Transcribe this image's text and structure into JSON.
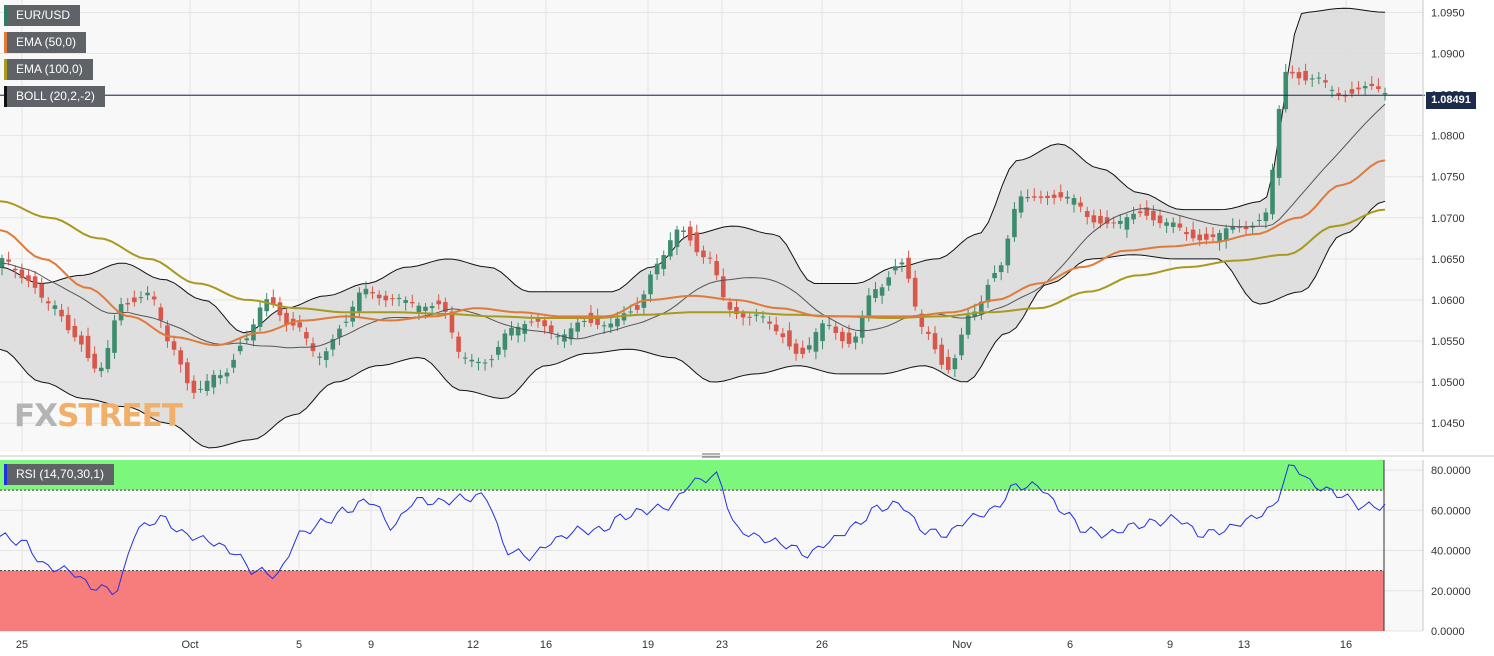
{
  "legend": {
    "symbol": "EUR/USD",
    "ema50": "EMA (50,0)",
    "ema100": "EMA (100,0)",
    "boll": "BOLL (20,2,-2)",
    "rsi": "RSI (14,70,30,1)"
  },
  "watermark": {
    "fx": "FX",
    "street": "STREET"
  },
  "colors": {
    "ema50": "#e07a3a",
    "ema100": "#a89a1e",
    "boll_mid": "#555555",
    "bull": "#3d8c6e",
    "bear": "#d9574a",
    "rsi_line": "#2030e0",
    "rsi_over": "#7cf77c",
    "rsi_under": "#f77c7c",
    "current_line": "#1a2b4c"
  },
  "chart_data": {
    "type": "candlestick",
    "symbol": "EUR/USD",
    "current_price": "1.08491",
    "price_axis": {
      "ylim": [
        1.0415,
        1.0965
      ],
      "ticks": [
        "1.0950",
        "1.0900",
        "1.0850",
        "1.0800",
        "1.0750",
        "1.0700",
        "1.0650",
        "1.0600",
        "1.0550",
        "1.0500",
        "1.0450"
      ]
    },
    "rsi_axis": {
      "ylim": [
        0,
        85
      ],
      "ticks": [
        "80.0000",
        "60.0000",
        "40.0000",
        "20.0000",
        "0.0000"
      ],
      "overbought": 70,
      "oversold": 30
    },
    "x_labels": [
      "25",
      "Oct",
      "5",
      "9",
      "12",
      "16",
      "19",
      "23",
      "26",
      "Nov",
      "6",
      "9",
      "13",
      "16"
    ],
    "close_anchors": [
      1.0645,
      1.063,
      1.059,
      1.056,
      1.051,
      1.06,
      1.0605,
      1.0545,
      1.0485,
      1.051,
      1.055,
      1.06,
      1.057,
      1.053,
      1.057,
      1.061,
      1.0605,
      1.059,
      1.06,
      1.0525,
      1.053,
      1.056,
      1.058,
      1.055,
      1.058,
      1.0565,
      1.059,
      1.064,
      1.069,
      1.065,
      1.059,
      1.058,
      1.056,
      1.0535,
      1.057,
      1.055,
      1.061,
      1.065,
      1.056,
      1.052,
      1.058,
      1.064,
      1.072,
      1.073,
      1.072,
      1.07,
      1.069,
      1.071,
      1.069,
      1.068,
      1.0675,
      1.069,
      1.07,
      1.088,
      1.087,
      1.085,
      1.086,
      1.0849
    ],
    "ema50_anchors": [
      1.0685,
      1.065,
      1.0615,
      1.058,
      1.0555,
      1.0545,
      1.056,
      1.0575,
      1.058,
      1.0575,
      1.058,
      1.059,
      1.0585,
      1.058,
      1.058,
      1.06,
      1.0605,
      1.06,
      1.059,
      1.058,
      1.058,
      1.058,
      1.0585,
      1.06,
      1.062,
      1.064,
      1.066,
      1.0665,
      1.067,
      1.068,
      1.07,
      1.074,
      1.077
    ],
    "ema100_anchors": [
      1.072,
      1.07,
      1.0675,
      1.065,
      1.062,
      1.06,
      1.059,
      1.0585,
      1.0585,
      1.0583,
      1.058,
      1.0578,
      1.0578,
      1.0582,
      1.0585,
      1.0585,
      1.0582,
      1.058,
      1.0578,
      1.058,
      1.0585,
      1.059,
      1.061,
      1.063,
      1.064,
      1.0648,
      1.0655,
      1.069,
      1.071
    ],
    "boll_upper_anchors": [
      1.064,
      1.062,
      1.063,
      1.0645,
      1.0625,
      1.06,
      1.056,
      1.059,
      1.0605,
      1.062,
      1.064,
      1.065,
      1.064,
      1.061,
      1.061,
      1.061,
      1.064,
      1.068,
      1.069,
      1.068,
      1.062,
      1.062,
      1.064,
      1.065,
      1.068,
      1.077,
      1.079,
      1.076,
      1.073,
      1.071,
      1.071,
      1.072,
      1.095,
      1.0955,
      1.095
    ],
    "boll_lower_anchors": [
      1.054,
      1.05,
      1.048,
      1.047,
      1.045,
      1.042,
      1.043,
      1.046,
      1.05,
      1.052,
      1.053,
      1.049,
      1.048,
      1.052,
      1.0535,
      1.054,
      1.053,
      1.05,
      1.051,
      1.052,
      1.051,
      1.051,
      1.052,
      1.05,
      1.056,
      1.062,
      1.065,
      1.0655,
      1.065,
      1.065,
      1.0595,
      1.061,
      1.068,
      1.072
    ],
    "rsi_anchors": [
      47,
      44,
      32,
      30,
      22,
      20,
      51,
      56,
      48,
      45,
      40,
      30,
      28,
      48,
      54,
      60,
      65,
      52,
      65,
      64,
      66,
      67,
      40,
      37,
      45,
      50,
      50,
      57,
      60,
      62,
      74,
      77,
      50,
      46,
      43,
      38,
      45,
      52,
      61,
      63,
      50,
      48,
      56,
      60,
      72,
      72,
      60,
      50,
      48,
      52,
      54,
      56,
      48,
      50,
      55,
      60,
      82,
      72,
      68,
      62,
      62
    ],
    "rsi_current": 62
  }
}
